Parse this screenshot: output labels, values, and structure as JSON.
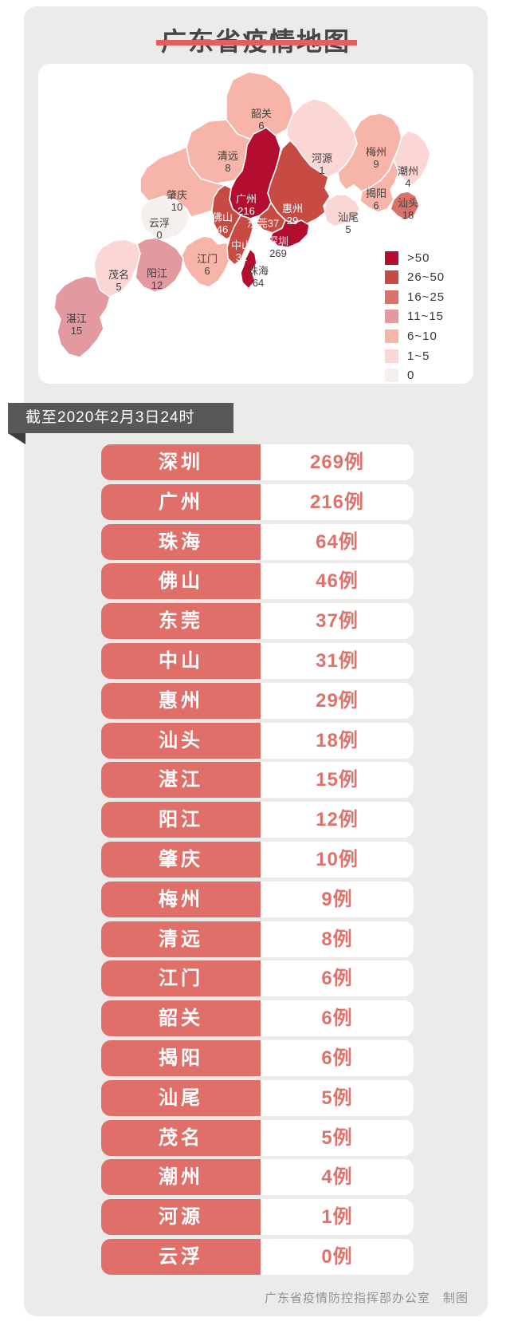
{
  "title": "广东省疫情地图",
  "banner": "截至2020年2月3日24时",
  "footer": "广东省疫情防控指挥部办公室　制图",
  "colors": {
    "gt50": "#b30e2f",
    "r26_50": "#c74a43",
    "r16_25": "#d9736a",
    "r11_15": "#e399a0",
    "r6_10": "#f7b4a9",
    "r1_5": "#fad7d4",
    "zero": "#f5efee",
    "accent_underline": "#e25e60",
    "row_pill": "#e06f6a",
    "banner_bg": "#595757"
  },
  "legend": [
    {
      "label": ">50",
      "bucket": "gt50"
    },
    {
      "label": "26~50",
      "bucket": "r26_50"
    },
    {
      "label": "16~25",
      "bucket": "r16_25"
    },
    {
      "label": "11~15",
      "bucket": "r11_15"
    },
    {
      "label": "6~10",
      "bucket": "r6_10"
    },
    {
      "label": "1~5",
      "bucket": "r1_5"
    },
    {
      "label": "0",
      "bucket": "zero"
    }
  ],
  "map_regions": [
    {
      "id": "shaoguan",
      "name": "韶关",
      "value": 6,
      "bucket": "r6_10"
    },
    {
      "id": "qingyuan",
      "name": "清远",
      "value": 8,
      "bucket": "r6_10"
    },
    {
      "id": "heyuan",
      "name": "河源",
      "value": 1,
      "bucket": "r1_5"
    },
    {
      "id": "meizhou",
      "name": "梅州",
      "value": 9,
      "bucket": "r6_10"
    },
    {
      "id": "chaozhou",
      "name": "潮州",
      "value": 4,
      "bucket": "r1_5"
    },
    {
      "id": "jieyang",
      "name": "揭阳",
      "value": 6,
      "bucket": "r6_10"
    },
    {
      "id": "shanwei",
      "name": "汕尾",
      "value": 5,
      "bucket": "r1_5"
    },
    {
      "id": "zhaoqing",
      "name": "肇庆",
      "value": 10,
      "bucket": "r6_10"
    },
    {
      "id": "yunfu",
      "name": "云浮",
      "value": 0,
      "bucket": "zero"
    },
    {
      "id": "jiangmen",
      "name": "江门",
      "value": 6,
      "bucket": "r6_10"
    },
    {
      "id": "maoming",
      "name": "茂名",
      "value": 5,
      "bucket": "r1_5"
    },
    {
      "id": "yangjiang",
      "name": "阳江",
      "value": 12,
      "bucket": "r11_15"
    },
    {
      "id": "zhanjiang",
      "name": "湛江",
      "value": 15,
      "bucket": "r11_15"
    },
    {
      "id": "shantou",
      "name": "汕头",
      "value": 18,
      "bucket": "r16_25"
    },
    {
      "id": "huizhou",
      "name": "惠州",
      "value": 29,
      "bucket": "r26_50"
    },
    {
      "id": "guangzhou",
      "name": "广州",
      "value": 216,
      "bucket": "gt50"
    },
    {
      "id": "foshan",
      "name": "佛山",
      "value": 46,
      "bucket": "r26_50"
    },
    {
      "id": "dongguan",
      "name": "东莞",
      "value": 37,
      "bucket": "r26_50"
    },
    {
      "id": "zhongshan",
      "name": "中山",
      "value": 31,
      "bucket": "r26_50"
    },
    {
      "id": "shenzhen",
      "name": "深圳",
      "value": 269,
      "bucket": "gt50"
    },
    {
      "id": "zhuhai",
      "name": "珠海",
      "value": 64,
      "bucket": "gt50"
    }
  ],
  "table": [
    {
      "city": "深圳",
      "value": "269例"
    },
    {
      "city": "广州",
      "value": "216例"
    },
    {
      "city": "珠海",
      "value": "64例"
    },
    {
      "city": "佛山",
      "value": "46例"
    },
    {
      "city": "东莞",
      "value": "37例"
    },
    {
      "city": "中山",
      "value": "31例"
    },
    {
      "city": "惠州",
      "value": "29例"
    },
    {
      "city": "汕头",
      "value": "18例"
    },
    {
      "city": "湛江",
      "value": "15例"
    },
    {
      "city": "阳江",
      "value": "12例"
    },
    {
      "city": "肇庆",
      "value": "10例"
    },
    {
      "city": "梅州",
      "value": "9例"
    },
    {
      "city": "清远",
      "value": "8例"
    },
    {
      "city": "江门",
      "value": "6例"
    },
    {
      "city": "韶关",
      "value": "6例"
    },
    {
      "city": "揭阳",
      "value": "6例"
    },
    {
      "city": "汕尾",
      "value": "5例"
    },
    {
      "city": "茂名",
      "value": "5例"
    },
    {
      "city": "潮州",
      "value": "4例"
    },
    {
      "city": "河源",
      "value": "1例"
    },
    {
      "city": "云浮",
      "value": "0例"
    }
  ],
  "chart_data": {
    "type": "heatmap",
    "title": "广东省疫情地图",
    "subtitle": "截至2020年2月3日24时",
    "categories": [
      "深圳",
      "广州",
      "珠海",
      "佛山",
      "东莞",
      "中山",
      "惠州",
      "汕头",
      "湛江",
      "阳江",
      "肇庆",
      "梅州",
      "清远",
      "江门",
      "韶关",
      "揭阳",
      "汕尾",
      "茂名",
      "潮州",
      "河源",
      "云浮"
    ],
    "values": [
      269,
      216,
      64,
      46,
      37,
      31,
      29,
      18,
      15,
      12,
      10,
      9,
      8,
      6,
      6,
      6,
      5,
      5,
      4,
      1,
      0
    ],
    "legend_buckets": [
      ">50",
      "26~50",
      "16~25",
      "11~15",
      "6~10",
      "1~5",
      "0"
    ],
    "legend_position": "right-bottom"
  }
}
